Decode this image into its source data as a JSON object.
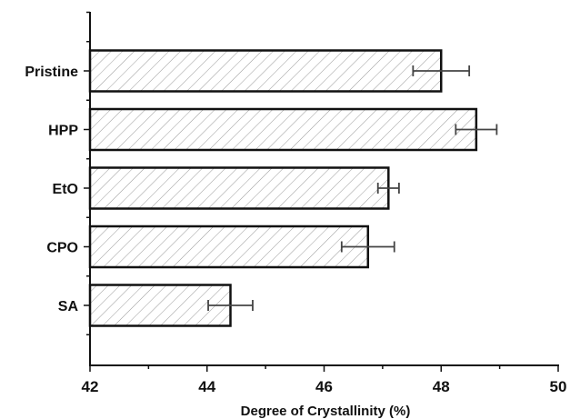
{
  "chart_data": {
    "type": "bar",
    "orientation": "horizontal",
    "categories": [
      "Pristine",
      "HPP",
      "EtO",
      "CPO",
      "SA"
    ],
    "values": [
      48.0,
      48.6,
      47.1,
      46.75,
      44.4
    ],
    "errors": [
      0.48,
      0.35,
      0.18,
      0.45,
      0.38
    ],
    "xlabel": "Degree of Crystallinity (%)",
    "ylabel": "",
    "xlim": [
      42,
      50
    ],
    "xticks": [
      42,
      44,
      46,
      48,
      50
    ],
    "xtick_labels": [
      "42",
      "44",
      "46",
      "48",
      "50"
    ],
    "bar_fill": "hatched",
    "bar_color": "#ffffff",
    "hatch_color": "#9a9a9a",
    "edge_color": "#111111",
    "error_bar_color": "#444444",
    "grid": false,
    "legend": "none"
  }
}
